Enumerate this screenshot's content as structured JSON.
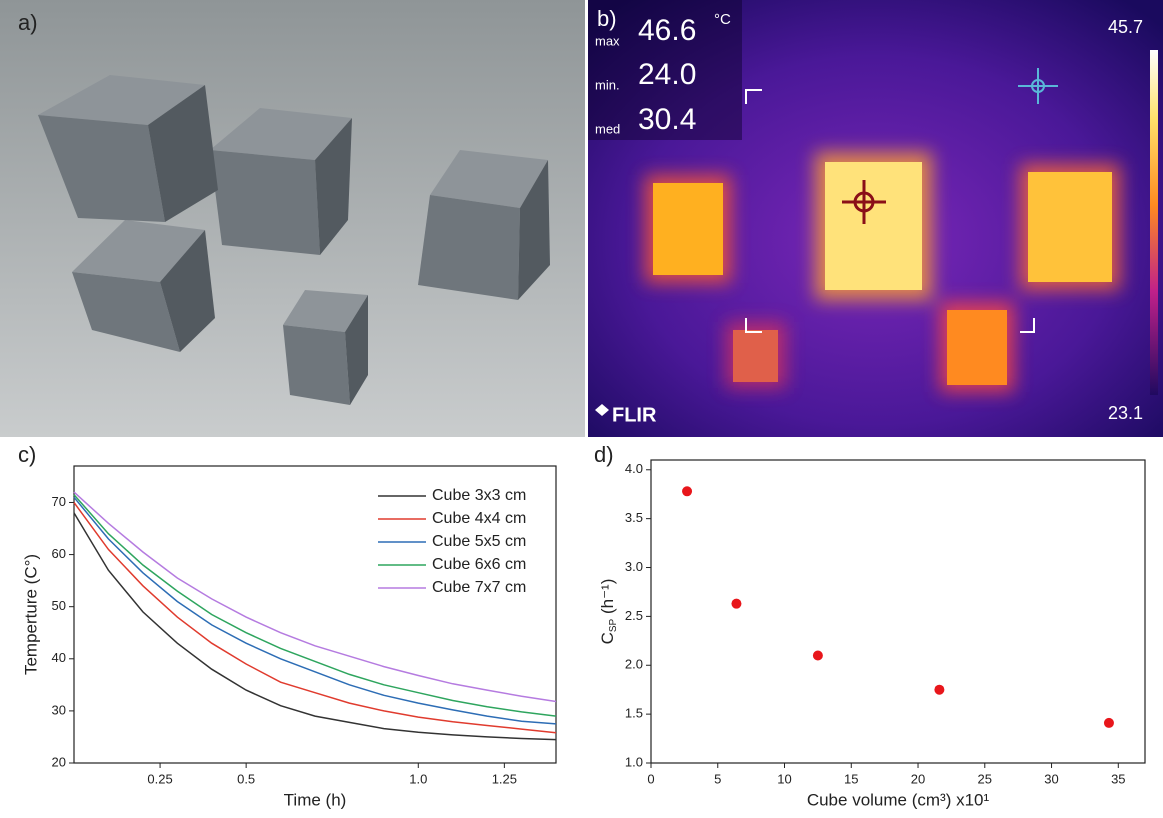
{
  "panels": {
    "a": {
      "label": "a)"
    },
    "b": {
      "label": "b)",
      "max_label": "max",
      "max": "46.6",
      "unit": "°C",
      "min_label": "min.",
      "min": "24.0",
      "med_label": "med",
      "med": "30.4",
      "scale_max": "45.7",
      "scale_min": "23.1",
      "logo": "FLIR"
    },
    "c": {
      "label": "c)"
    },
    "d": {
      "label": "d)"
    }
  },
  "chart_data": [
    {
      "type": "line",
      "x_label": "Time (h)",
      "y_label": "Temperture (C°)",
      "x": [
        0,
        0.1,
        0.2,
        0.3,
        0.4,
        0.5,
        0.6,
        0.7,
        0.8,
        0.9,
        1.0,
        1.1,
        1.2,
        1.3,
        1.4
      ],
      "series": [
        {
          "name": "Cube 3x3 cm",
          "color": "#333333",
          "values": [
            68,
            57,
            49,
            43,
            38,
            34,
            31,
            29,
            27.8,
            26.6,
            25.9,
            25.4,
            25,
            24.7,
            24.5
          ]
        },
        {
          "name": "Cube 4x4 cm",
          "color": "#e03b2e",
          "values": [
            70,
            61,
            54,
            48,
            43,
            39,
            35.5,
            33.5,
            31.5,
            30,
            28.8,
            27.9,
            27.2,
            26.5,
            25.8
          ]
        },
        {
          "name": "Cube 5x5 cm",
          "color": "#2d6db5",
          "values": [
            71,
            63,
            56.5,
            51,
            46.5,
            43,
            40,
            37.5,
            35,
            33,
            31.5,
            30.2,
            29,
            28,
            27.5
          ]
        },
        {
          "name": "Cube 6x6 cm",
          "color": "#2ea55e",
          "values": [
            71.5,
            64,
            58,
            53,
            48.5,
            45,
            42,
            39.5,
            37,
            35,
            33.5,
            32,
            30.8,
            29.8,
            29
          ]
        },
        {
          "name": "Cube 7x7 cm",
          "color": "#b57be0",
          "values": [
            72,
            66,
            60.5,
            55.5,
            51.5,
            48,
            45,
            42.5,
            40.5,
            38.5,
            36.8,
            35.2,
            34,
            32.8,
            31.8
          ]
        }
      ],
      "xlim": [
        0,
        1.4
      ],
      "xticks": [
        0.25,
        0.5,
        {
          "value": 1,
          "label": "1.0"
        },
        1.25
      ],
      "ylim": [
        20,
        77
      ],
      "yticks": [
        20,
        30,
        40,
        50,
        60,
        70
      ],
      "legend": "upper right"
    },
    {
      "type": "scatter",
      "x_label": "Cube volume (cm³) x10¹",
      "y_label": {
        "main": "C",
        "sub": "SP",
        "unit": " (h⁻¹)"
      },
      "color": "#e8161b",
      "x": [
        2.7,
        6.4,
        12.5,
        21.6,
        34.3
      ],
      "values": [
        3.78,
        2.63,
        2.1,
        1.75,
        1.41
      ],
      "xlim": [
        0,
        37
      ],
      "xticks": [
        0,
        5,
        10,
        15,
        20,
        25,
        30,
        35
      ],
      "ylim": [
        1,
        4.1
      ],
      "yticks": [
        {
          "value": 1,
          "label": "1.0"
        },
        1.5,
        {
          "value": 2,
          "label": "2.0"
        },
        2.5,
        {
          "value": 3,
          "label": "3.0"
        },
        3.5,
        {
          "value": 4,
          "label": "4.0"
        }
      ]
    }
  ]
}
